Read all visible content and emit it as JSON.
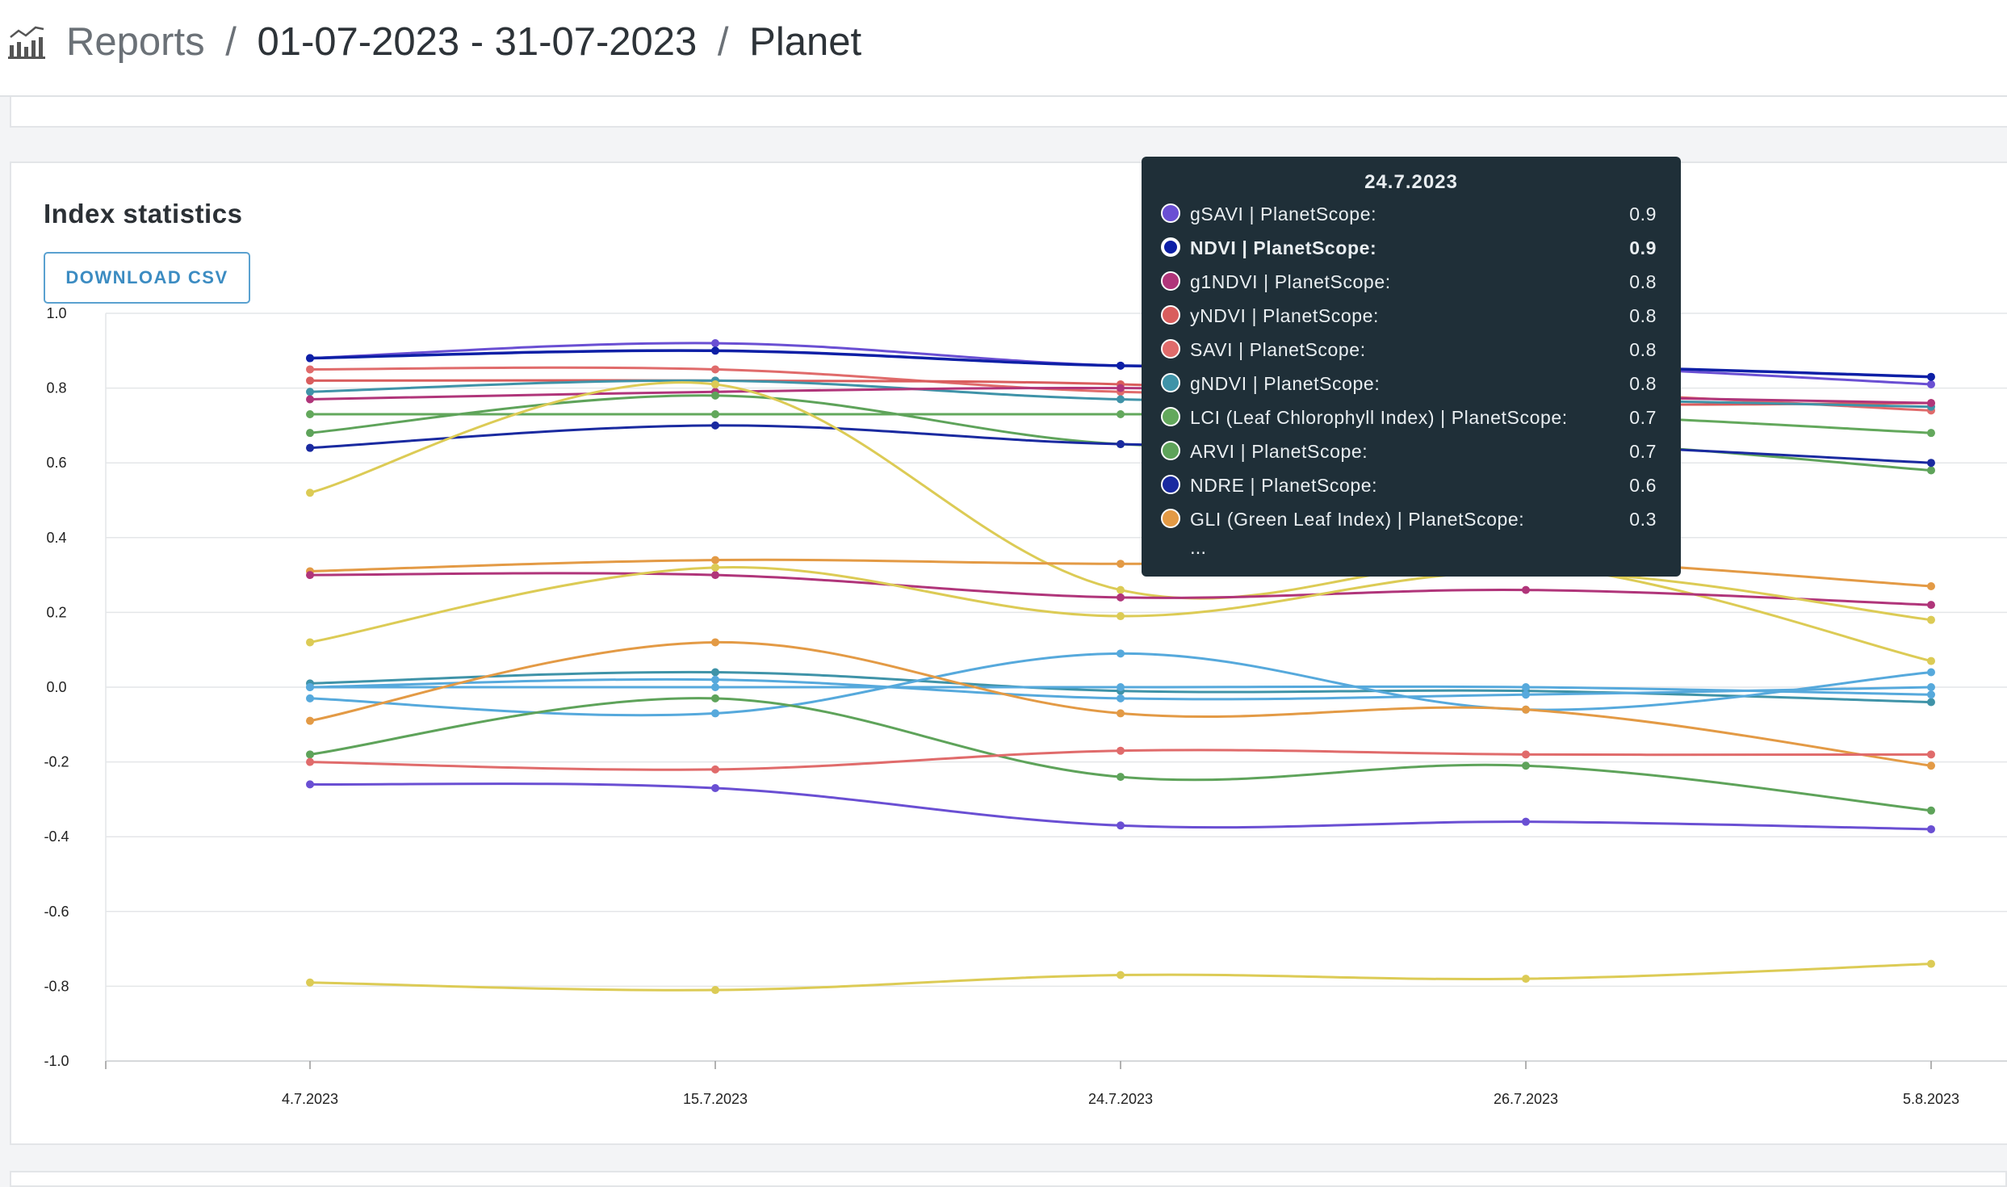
{
  "header": {
    "icon": "bar-chart-icon",
    "section": "Reports",
    "separator": "/",
    "date_range": "01-07-2023 - 31-07-2023",
    "source": "Planet"
  },
  "card": {
    "title": "Index statistics",
    "download_label": "DOWNLOAD CSV"
  },
  "tooltip": {
    "date": "24.7.2023",
    "items": [
      {
        "label": "gSAVI | PlanetScope:",
        "value": "0.9",
        "color": "#6a4fd3",
        "bold": false
      },
      {
        "label": "NDVI | PlanetScope:",
        "value": "0.9",
        "color": "#0d1fa6",
        "bold": true
      },
      {
        "label": "g1NDVI | PlanetScope:",
        "value": "0.8",
        "color": "#b0357a",
        "bold": false
      },
      {
        "label": "yNDVI | PlanetScope:",
        "value": "0.8",
        "color": "#d95d5d",
        "bold": false
      },
      {
        "label": "SAVI | PlanetScope:",
        "value": "0.8",
        "color": "#e06b6b",
        "bold": false
      },
      {
        "label": "gNDVI | PlanetScope:",
        "value": "0.8",
        "color": "#3f93a8",
        "bold": false
      },
      {
        "label": "LCI (Leaf Chlorophyll Index) | PlanetScope:",
        "value": "0.7",
        "color": "#63a85c",
        "bold": false
      },
      {
        "label": "ARVI | PlanetScope:",
        "value": "0.7",
        "color": "#5ea35a",
        "bold": false
      },
      {
        "label": "NDRE | PlanetScope:",
        "value": "0.6",
        "color": "#1a2aa0",
        "bold": false
      },
      {
        "label": "GLI (Green Leaf Index) | PlanetScope:",
        "value": "0.3",
        "color": "#e39a45",
        "bold": false
      }
    ],
    "more": "..."
  },
  "chart_data": {
    "type": "line",
    "title": "",
    "xlabel": "",
    "ylabel": "",
    "x": [
      "4.7.2023",
      "15.7.2023",
      "24.7.2023",
      "26.7.2023",
      "5.8.2023"
    ],
    "ylim": [
      -1.0,
      1.0
    ],
    "yticks": [
      "1.0",
      "0.8",
      "0.6",
      "0.4",
      "0.2",
      "0.0",
      "-0.2",
      "-0.4",
      "-0.6",
      "-0.8",
      "-1.0"
    ],
    "grid": true,
    "series": [
      {
        "color": "#6a4fd3",
        "values": [
          0.88,
          0.92,
          0.86,
          0.86,
          0.81
        ]
      },
      {
        "name": "NDVI | PlanetScope:",
        "color": "#0d1fa6",
        "values": [
          0.88,
          0.9,
          0.86,
          0.86,
          0.83
        ]
      },
      {
        "color": "#e06b6b",
        "values": [
          0.85,
          0.85,
          0.79,
          0.79,
          0.74
        ]
      },
      {
        "color": "#d95d5d",
        "values": [
          0.82,
          0.82,
          0.81,
          0.76,
          0.76
        ]
      },
      {
        "color": "#3f93a8",
        "values": [
          0.79,
          0.82,
          0.77,
          0.77,
          0.75
        ]
      },
      {
        "color": "#b0357a",
        "values": [
          0.77,
          0.79,
          0.8,
          0.78,
          0.76
        ]
      },
      {
        "color": "#63a85c",
        "values": [
          0.73,
          0.73,
          0.73,
          0.73,
          0.68
        ]
      },
      {
        "color": "#5ea35a",
        "values": [
          0.68,
          0.78,
          0.65,
          0.66,
          0.58
        ]
      },
      {
        "color": "#1a2aa0",
        "values": [
          0.64,
          0.7,
          0.65,
          0.65,
          0.6
        ]
      },
      {
        "color": "#dccb55",
        "values": [
          0.52,
          0.81,
          0.26,
          0.33,
          0.07
        ]
      },
      {
        "color": "#e39a45",
        "values": [
          0.31,
          0.34,
          0.33,
          0.34,
          0.27
        ]
      },
      {
        "color": "#b0357a",
        "values": [
          0.3,
          0.3,
          0.24,
          0.26,
          0.22
        ]
      },
      {
        "color": "#dccb55",
        "values": [
          0.12,
          0.32,
          0.19,
          0.31,
          0.18
        ]
      },
      {
        "color": "#3f93a8",
        "values": [
          0.01,
          0.04,
          -0.01,
          -0.01,
          -0.04
        ]
      },
      {
        "color": "#56a9dc",
        "values": [
          0.0,
          0.02,
          -0.03,
          -0.02,
          0.0
        ]
      },
      {
        "color": "#56a9dc",
        "values": [
          0.0,
          0.0,
          0.0,
          0.0,
          -0.02
        ]
      },
      {
        "color": "#56a9dc",
        "values": [
          -0.03,
          -0.07,
          0.09,
          -0.06,
          0.04
        ]
      },
      {
        "color": "#e39a45",
        "values": [
          -0.09,
          0.12,
          -0.07,
          -0.06,
          -0.21
        ]
      },
      {
        "color": "#5ea35a",
        "values": [
          -0.18,
          -0.03,
          -0.24,
          -0.21,
          -0.33
        ]
      },
      {
        "color": "#e06b6b",
        "values": [
          -0.2,
          -0.22,
          -0.17,
          -0.18,
          -0.18
        ]
      },
      {
        "color": "#6a4fd3",
        "values": [
          -0.26,
          -0.27,
          -0.37,
          -0.36,
          -0.38
        ]
      },
      {
        "color": "#dccb55",
        "values": [
          -0.79,
          -0.81,
          -0.77,
          -0.78,
          -0.74
        ]
      }
    ]
  }
}
